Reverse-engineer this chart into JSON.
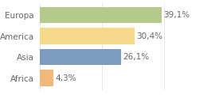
{
  "categories": [
    "Africa",
    "Asia",
    "America",
    "Europa"
  ],
  "values": [
    4.3,
    26.1,
    30.4,
    39.1
  ],
  "labels": [
    "4,3%",
    "26,1%",
    "30,4%",
    "39,1%"
  ],
  "bar_colors": [
    "#f0b97a",
    "#7d9bbf",
    "#f7d98b",
    "#b5c98a"
  ],
  "xlim": [
    0,
    46
  ],
  "background_color": "#ffffff",
  "label_fontsize": 7.5,
  "tick_fontsize": 7.5,
  "tick_color": "#666666",
  "grid_color": "#dddddd",
  "figsize": [
    2.8,
    1.2
  ],
  "dpi": 100
}
